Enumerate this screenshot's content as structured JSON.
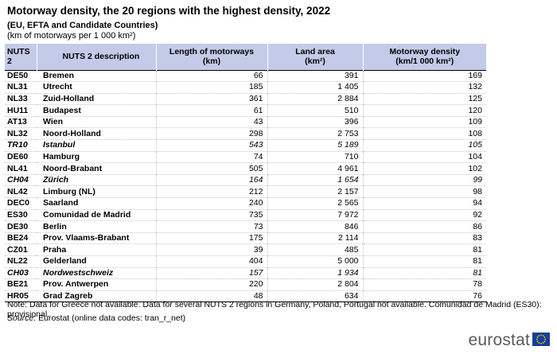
{
  "title": "Motorway density, the 20 regions with the highest density, 2022",
  "subtitle": "(EU, EFTA and Candidate Countries)",
  "unit": "(km of motorways per 1 000 km²)",
  "table": {
    "headers": {
      "code": "NUTS 2",
      "desc": "NUTS 2 description",
      "length": "Length of motorways (km)",
      "area_line1": "Land area",
      "area_line2": "(km²)",
      "density_line1": "Motorway density",
      "density_line2": "(km/1 000 km²)"
    },
    "rows": [
      {
        "code": "DE50",
        "desc": "Bremen",
        "length": "66",
        "area": "391",
        "density": "169",
        "italic": false
      },
      {
        "code": "NL31",
        "desc": "Utrecht",
        "length": "185",
        "area": "1 405",
        "density": "132",
        "italic": false
      },
      {
        "code": "NL33",
        "desc": "Zuid-Holland",
        "length": "361",
        "area": "2 884",
        "density": "125",
        "italic": false
      },
      {
        "code": "HU11",
        "desc": "Budapest",
        "length": "61",
        "area": "510",
        "density": "120",
        "italic": false
      },
      {
        "code": "AT13",
        "desc": "Wien",
        "length": "43",
        "area": "396",
        "density": "109",
        "italic": false
      },
      {
        "code": "NL32",
        "desc": "Noord-Holland",
        "length": "298",
        "area": "2 753",
        "density": "108",
        "italic": false
      },
      {
        "code": "TR10",
        "desc": "Istanbul",
        "length": "543",
        "area": "5 189",
        "density": "105",
        "italic": true
      },
      {
        "code": "DE60",
        "desc": "Hamburg",
        "length": "74",
        "area": "710",
        "density": "104",
        "italic": false
      },
      {
        "code": "NL41",
        "desc": "Noord-Brabant",
        "length": "505",
        "area": "4 961",
        "density": "102",
        "italic": false
      },
      {
        "code": "CH04",
        "desc": "Zürich",
        "length": "164",
        "area": "1 654",
        "density": "99",
        "italic": true
      },
      {
        "code": "NL42",
        "desc": "Limburg (NL)",
        "length": "212",
        "area": "2 157",
        "density": "98",
        "italic": false
      },
      {
        "code": "DEC0",
        "desc": "Saarland",
        "length": "240",
        "area": "2 565",
        "density": "94",
        "italic": false
      },
      {
        "code": "ES30",
        "desc": "Comunidad de Madrid",
        "length": "735",
        "area": "7 972",
        "density": "92",
        "italic": false
      },
      {
        "code": "DE30",
        "desc": "Berlin",
        "length": "73",
        "area": "846",
        "density": "86",
        "italic": false
      },
      {
        "code": "BE24",
        "desc": "Prov. Vlaams-Brabant",
        "length": "175",
        "area": "2 114",
        "density": "83",
        "italic": false
      },
      {
        "code": "CZ01",
        "desc": "Praha",
        "length": "39",
        "area": "485",
        "density": "81",
        "italic": false
      },
      {
        "code": "NL22",
        "desc": "Gelderland",
        "length": "404",
        "area": "5 000",
        "density": "81",
        "italic": false
      },
      {
        "code": "CH03",
        "desc": "Nordwestschweiz",
        "length": "157",
        "area": "1 934",
        "density": "81",
        "italic": true
      },
      {
        "code": "BE21",
        "desc": "Prov. Antwerpen",
        "length": "220",
        "area": "2 804",
        "density": "78",
        "italic": false
      },
      {
        "code": "HR05",
        "desc": "Grad Zagreb",
        "length": "48",
        "area": "634",
        "density": "76",
        "italic": false
      }
    ]
  },
  "note": "Note: Data for Greece not available. Data for several NUTS 2 regions in Germany, Poland, Portugal not available. Comunidad de Madrid (ES30): provisional.",
  "source": {
    "label": "Source:",
    "text": "Eurostat (online data codes: tran_r_net)"
  },
  "logo": "eurostat",
  "colors": {
    "header_bg": "#c4cbe9",
    "flag_blue": "#173f97",
    "flag_stars": "#ffdd00"
  },
  "icons": {
    "logo_flag": "eu-flag-icon"
  }
}
